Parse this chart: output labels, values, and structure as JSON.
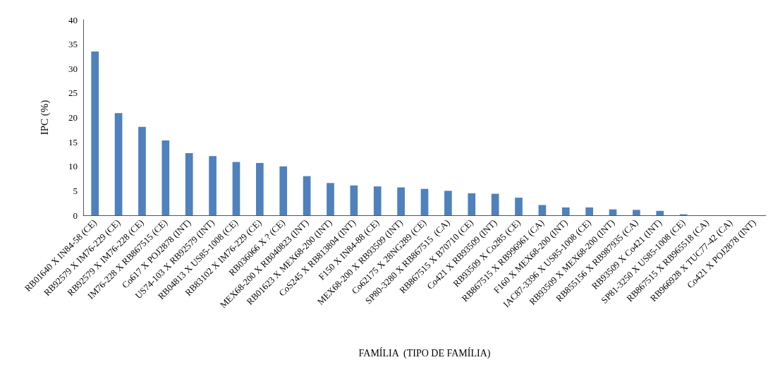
{
  "chart_data": {
    "type": "bar",
    "xlabel": "FAMÍLIA  (TIPO DE FAMÍLIA)",
    "ylabel": "IPC (%)",
    "categories": [
      "RB01640 X IN84-58 (CE)",
      "RB92579 X IM76-229 (CE)",
      "RB92579 X IM76-228 (CE)",
      "IM76-228 X RB867515 (CE)",
      "Co617 X POJ2878 (INT)",
      "US74-103 X RB92579 (INT)",
      "RB04813 X US85-1008 (CE)",
      "RB83102 X IM76-229 (CE)",
      "RB036066 X ? (CE)",
      "MEX68-200 X RB040823 (INT)",
      "RB01623 X MEX68-200 (INT)",
      "CoS245 X RB813804 (INT)",
      "F150 X IN84-88 (CE)",
      "MEX68-200 X RB93509 (INT)",
      "Co62175 X 28NG289 (CE)",
      "SP80-3280 X RB867515  (CA)",
      "RB867515 X B70710 (CE)",
      "Co421 X RB93509 (INT)",
      "RB93509 X Co285 (CE)",
      "RB867515 X RB996961 (CA)",
      "F160 X MEX68-200 (INT)",
      "IAC87-3396 X US85-1008 (CE)",
      "RB93509 X MEX68-200 (INT)",
      "RB855156 X RB987935 (CA)",
      "RB93509 X Co421 (INT)",
      "SP81-3250 X US85-1008 (CE)",
      "RB867515 X RB965518 (CA)",
      "RB966928 X TUC77-42 (CA)",
      "Co421 X POJ2878 (INT)"
    ],
    "values": [
      33.5,
      20.9,
      18.1,
      15.3,
      12.7,
      12.1,
      10.9,
      10.7,
      10.0,
      8.0,
      6.6,
      6.1,
      5.9,
      5.7,
      5.4,
      5.0,
      4.5,
      4.4,
      3.6,
      2.1,
      1.6,
      1.6,
      1.2,
      1.1,
      0.9,
      0.2,
      0,
      0,
      0
    ],
    "color": "#4f81bd",
    "ylim": [
      0,
      40
    ],
    "yticks": [
      0,
      5,
      10,
      15,
      20,
      25,
      30,
      35,
      40
    ],
    "grid": false
  }
}
